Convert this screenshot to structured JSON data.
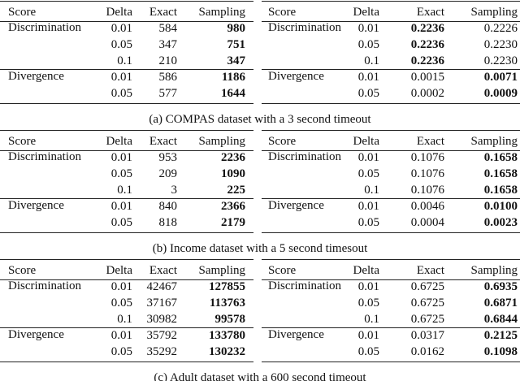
{
  "panels": [
    {
      "caption": "(a) COMPAS dataset with a 3 second timeout",
      "tables": [
        {
          "header": [
            "Score",
            "Delta",
            "Exact",
            "Sampling"
          ],
          "groups": [
            {
              "score": "Discrimination",
              "rows": [
                [
                  "0.01",
                  "584",
                  "980"
                ],
                [
                  "0.05",
                  "347",
                  "751"
                ],
                [
                  "0.1",
                  "210",
                  "347"
                ]
              ],
              "bold": [
                2,
                2,
                2
              ]
            },
            {
              "score": "Divergence",
              "rows": [
                [
                  "0.01",
                  "586",
                  "1186"
                ],
                [
                  "0.05",
                  "577",
                  "1644"
                ]
              ],
              "bold": [
                2,
                2
              ]
            }
          ]
        },
        {
          "header": [
            "Score",
            "Delta",
            "Exact",
            "Sampling"
          ],
          "groups": [
            {
              "score": "Discrimination",
              "rows": [
                [
                  "0.01",
                  "0.2236",
                  "0.2226"
                ],
                [
                  "0.05",
                  "0.2236",
                  "0.2230"
                ],
                [
                  "0.1",
                  "0.2236",
                  "0.2230"
                ]
              ],
              "bold": [
                1,
                1,
                1
              ]
            },
            {
              "score": "Divergence",
              "rows": [
                [
                  "0.01",
                  "0.0015",
                  "0.0071"
                ],
                [
                  "0.05",
                  "0.0002",
                  "0.0009"
                ]
              ],
              "bold": [
                2,
                2
              ]
            }
          ]
        }
      ]
    },
    {
      "caption": "(b) Income dataset with a 5 second timesout",
      "tables": [
        {
          "header": [
            "Score",
            "Delta",
            "Exact",
            "Sampling"
          ],
          "groups": [
            {
              "score": "Discrimination",
              "rows": [
                [
                  "0.01",
                  "953",
                  "2236"
                ],
                [
                  "0.05",
                  "209",
                  "1090"
                ],
                [
                  "0.1",
                  "3",
                  "225"
                ]
              ],
              "bold": [
                2,
                2,
                2
              ]
            },
            {
              "score": "Divergence",
              "rows": [
                [
                  "0.01",
                  "840",
                  "2366"
                ],
                [
                  "0.05",
                  "818",
                  "2179"
                ]
              ],
              "bold": [
                2,
                2
              ]
            }
          ]
        },
        {
          "header": [
            "Score",
            "Delta",
            "Exact",
            "Sampling"
          ],
          "groups": [
            {
              "score": "Discrimination",
              "rows": [
                [
                  "0.01",
                  "0.1076",
                  "0.1658"
                ],
                [
                  "0.05",
                  "0.1076",
                  "0.1658"
                ],
                [
                  "0.1",
                  "0.1076",
                  "0.1658"
                ]
              ],
              "bold": [
                2,
                2,
                2
              ]
            },
            {
              "score": "Divergence",
              "rows": [
                [
                  "0.01",
                  "0.0046",
                  "0.0100"
                ],
                [
                  "0.05",
                  "0.0004",
                  "0.0023"
                ]
              ],
              "bold": [
                2,
                2
              ]
            }
          ]
        }
      ]
    },
    {
      "caption": "(c) Adult dataset with a 600 second timeout",
      "tables": [
        {
          "header": [
            "Score",
            "Delta",
            "Exact",
            "Sampling"
          ],
          "groups": [
            {
              "score": "Discrimination",
              "rows": [
                [
                  "0.01",
                  "42467",
                  "127855"
                ],
                [
                  "0.05",
                  "37167",
                  "113763"
                ],
                [
                  "0.1",
                  "30982",
                  "99578"
                ]
              ],
              "bold": [
                2,
                2,
                2
              ]
            },
            {
              "score": "Divergence",
              "rows": [
                [
                  "0.01",
                  "35792",
                  "133780"
                ],
                [
                  "0.05",
                  "35292",
                  "130232"
                ]
              ],
              "bold": [
                2,
                2
              ]
            }
          ]
        },
        {
          "header": [
            "Score",
            "Delta",
            "Exact",
            "Sampling"
          ],
          "groups": [
            {
              "score": "Discrimination",
              "rows": [
                [
                  "0.01",
                  "0.6725",
                  "0.6935"
                ],
                [
                  "0.05",
                  "0.6725",
                  "0.6871"
                ],
                [
                  "0.1",
                  "0.6725",
                  "0.6844"
                ]
              ],
              "bold": [
                2,
                2,
                2
              ]
            },
            {
              "score": "Divergence",
              "rows": [
                [
                  "0.01",
                  "0.0317",
                  "0.2125"
                ],
                [
                  "0.05",
                  "0.0162",
                  "0.1098"
                ]
              ],
              "bold": [
                2,
                2
              ]
            }
          ]
        }
      ]
    }
  ]
}
